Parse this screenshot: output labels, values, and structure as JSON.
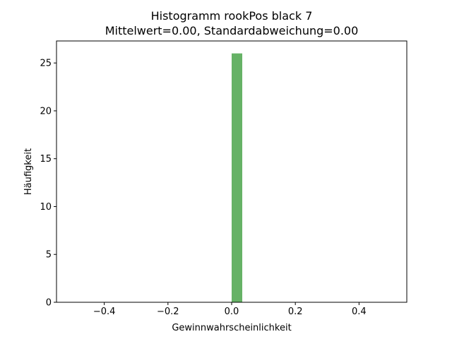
{
  "chart_data": {
    "type": "bar",
    "title": "Histogramm rookPos black 7",
    "subtitle": "Mittelwert=0.00, Standardabweichung=0.00",
    "xlabel": "Gewinnwahrscheinlichkeit",
    "ylabel": "Häufigkeit",
    "xlim": [
      -0.55,
      0.55
    ],
    "ylim": [
      0,
      27.3
    ],
    "x_ticks": [
      -0.4,
      -0.2,
      0.0,
      0.2,
      0.4
    ],
    "x_tick_labels": [
      "−0.4",
      "−0.2",
      "0.0",
      "0.2",
      "0.4"
    ],
    "y_ticks": [
      0,
      5,
      10,
      15,
      20,
      25
    ],
    "y_tick_labels": [
      "0",
      "5",
      "10",
      "15",
      "20",
      "25"
    ],
    "bins": [
      {
        "x_start": 0.0,
        "x_end": 0.0333,
        "count": 26
      }
    ],
    "bar_color": "#66b266",
    "grid": false,
    "legend": "none"
  }
}
